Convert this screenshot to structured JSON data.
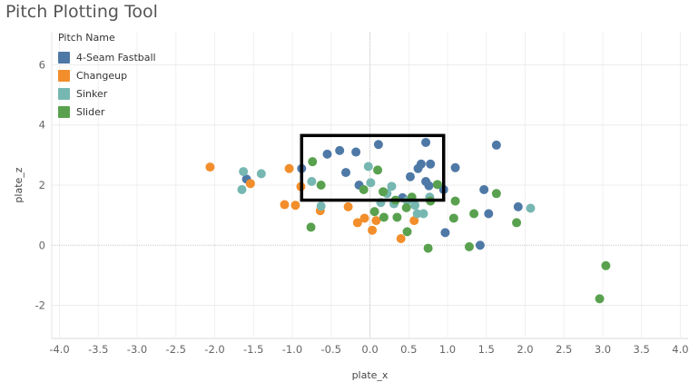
{
  "title": "Pitch Plotting Tool",
  "chart_data": {
    "type": "scatter",
    "title": "Pitch Plotting Tool",
    "xlabel": "plate_x",
    "ylabel": "plate_z",
    "xlim": [
      -4.1,
      4.1
    ],
    "ylim": [
      -3.1,
      7.1
    ],
    "x_ticks": [
      -4.0,
      -3.5,
      -3.0,
      -2.5,
      -2.0,
      -1.5,
      -1.0,
      -0.5,
      0.0,
      0.5,
      1.0,
      1.5,
      2.0,
      2.5,
      3.0,
      3.5,
      4.0
    ],
    "x_tick_labels": [
      "-4.0",
      "-3.5",
      "-3.0",
      "-2.5",
      "-2.0",
      "-1.5",
      "-1.0",
      "-0.5",
      "0.0",
      "0.5",
      "1.0",
      "1.5",
      "2.0",
      "2.5",
      "3.0",
      "3.5",
      "4.0"
    ],
    "y_ticks": [
      -2,
      0,
      2,
      4,
      6
    ],
    "y_tick_labels": [
      "-2",
      "0",
      "2",
      "4",
      "6"
    ],
    "grid": true,
    "legend_title": "Pitch Name",
    "legend_position": "top-left",
    "strike_zone": {
      "x": [
        -0.88,
        0.95
      ],
      "y": [
        1.5,
        3.65
      ]
    },
    "series": [
      {
        "name": "4-Seam Fastball",
        "color": "#4e79a7",
        "points": [
          [
            0.11,
            3.35
          ],
          [
            0.72,
            3.42
          ],
          [
            1.63,
            3.33
          ],
          [
            -0.39,
            3.15
          ],
          [
            -0.18,
            3.1
          ],
          [
            -0.55,
            3.03
          ],
          [
            0.62,
            2.55
          ],
          [
            0.66,
            2.7
          ],
          [
            0.78,
            2.7
          ],
          [
            -0.88,
            2.55
          ],
          [
            -0.31,
            2.42
          ],
          [
            1.1,
            2.58
          ],
          [
            0.52,
            2.28
          ],
          [
            0.72,
            2.12
          ],
          [
            0.76,
            1.98
          ],
          [
            0.95,
            1.85
          ],
          [
            -0.14,
            2.0
          ],
          [
            0.42,
            1.58
          ],
          [
            1.47,
            1.85
          ],
          [
            1.91,
            1.28
          ],
          [
            1.53,
            1.05
          ],
          [
            -1.59,
            2.2
          ],
          [
            0.97,
            0.42
          ],
          [
            1.42,
            0.0
          ]
        ]
      },
      {
        "name": "Changeup",
        "color": "#f28e2b",
        "points": [
          [
            -2.06,
            2.6
          ],
          [
            -1.54,
            2.05
          ],
          [
            -1.04,
            2.55
          ],
          [
            -0.89,
            1.95
          ],
          [
            -1.1,
            1.35
          ],
          [
            -0.96,
            1.33
          ],
          [
            -0.64,
            1.15
          ],
          [
            -0.28,
            1.28
          ],
          [
            -0.16,
            0.75
          ],
          [
            -0.07,
            0.9
          ],
          [
            0.03,
            0.5
          ],
          [
            0.08,
            0.82
          ],
          [
            0.57,
            0.82
          ],
          [
            0.4,
            0.22
          ]
        ]
      },
      {
        "name": "Sinker",
        "color": "#76b7b2",
        "points": [
          [
            -1.63,
            2.45
          ],
          [
            -1.4,
            2.38
          ],
          [
            -1.65,
            1.85
          ],
          [
            -0.75,
            2.12
          ],
          [
            -0.63,
            1.3
          ],
          [
            -0.02,
            2.62
          ],
          [
            0.01,
            2.08
          ],
          [
            0.14,
            1.42
          ],
          [
            0.28,
            1.96
          ],
          [
            0.31,
            1.38
          ],
          [
            0.22,
            1.72
          ],
          [
            0.48,
            1.48
          ],
          [
            0.58,
            1.33
          ],
          [
            0.61,
            1.05
          ],
          [
            0.69,
            1.05
          ],
          [
            0.77,
            1.6
          ],
          [
            2.07,
            1.23
          ]
        ]
      },
      {
        "name": "Slider",
        "color": "#59a14f",
        "points": [
          [
            -0.74,
            2.78
          ],
          [
            -0.63,
            2.0
          ],
          [
            -0.08,
            1.85
          ],
          [
            0.1,
            2.5
          ],
          [
            0.17,
            1.78
          ],
          [
            0.33,
            1.5
          ],
          [
            0.54,
            1.6
          ],
          [
            0.47,
            1.25
          ],
          [
            0.87,
            2.02
          ],
          [
            0.78,
            1.47
          ],
          [
            1.1,
            1.47
          ],
          [
            0.06,
            1.12
          ],
          [
            0.18,
            0.93
          ],
          [
            0.35,
            0.93
          ],
          [
            0.48,
            0.45
          ],
          [
            1.08,
            0.9
          ],
          [
            1.34,
            1.05
          ],
          [
            1.63,
            1.72
          ],
          [
            1.89,
            0.75
          ],
          [
            -0.76,
            0.6
          ],
          [
            0.75,
            -0.1
          ],
          [
            1.28,
            -0.05
          ],
          [
            3.04,
            -0.68
          ],
          [
            2.96,
            -1.78
          ]
        ]
      }
    ]
  }
}
